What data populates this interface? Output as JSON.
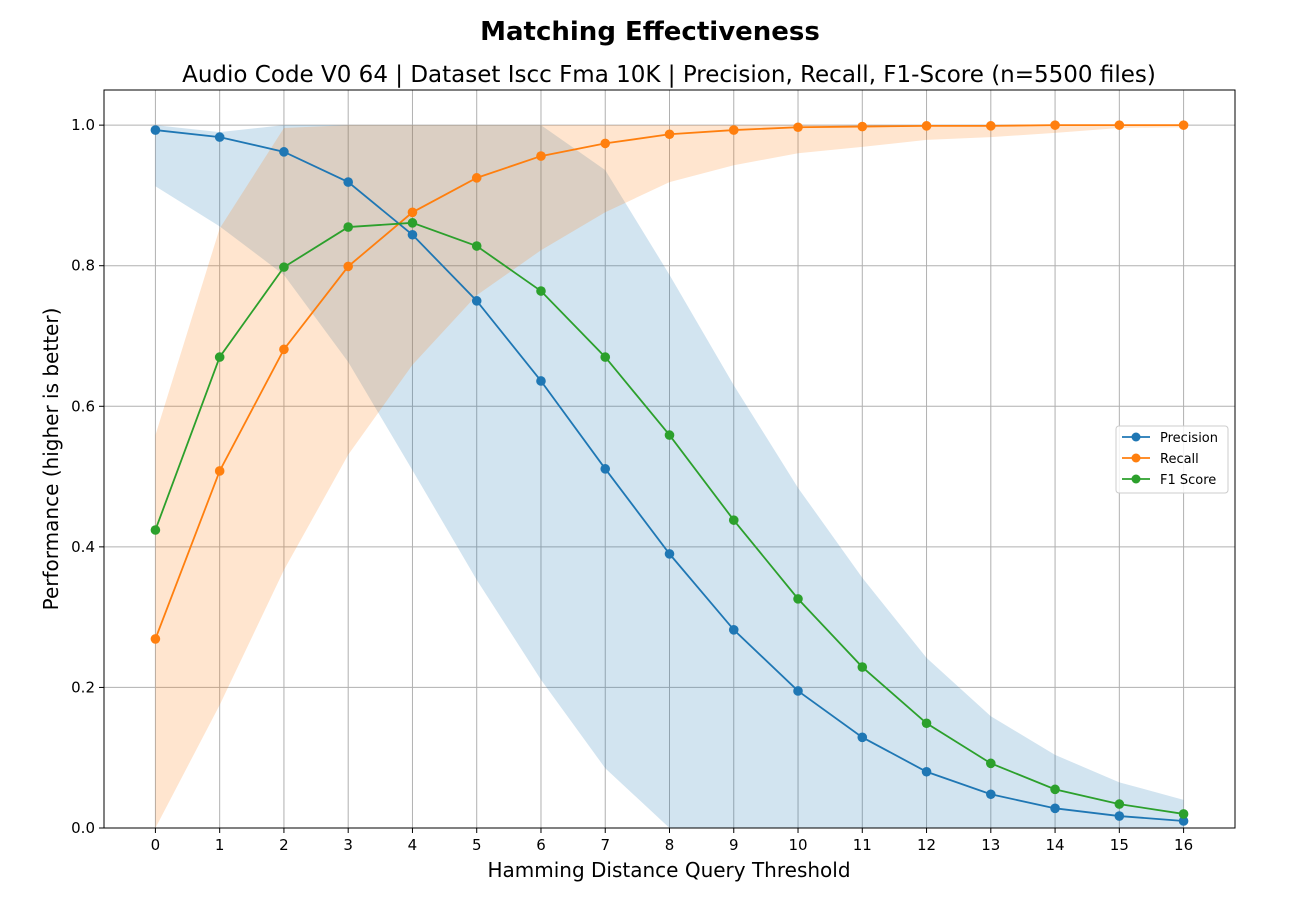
{
  "chart_data": {
    "type": "line",
    "title": "Matching Effectiveness",
    "subtitle": "Audio Code V0 64 | Dataset Iscc Fma 10K | Precision, Recall, F1-Score (n=5500 files)",
    "xlabel": "Hamming Distance Query Threshold",
    "ylabel": "Performance (higher is better)",
    "x": [
      0,
      1,
      2,
      3,
      4,
      5,
      6,
      7,
      8,
      9,
      10,
      11,
      12,
      13,
      14,
      15,
      16
    ],
    "xlim": [
      -0.8,
      16.8
    ],
    "ylim": [
      0,
      1.05
    ],
    "xticks": [
      "0",
      "1",
      "2",
      "3",
      "4",
      "5",
      "6",
      "7",
      "8",
      "9",
      "10",
      "11",
      "12",
      "13",
      "14",
      "15",
      "16"
    ],
    "yticks": [
      "0.0",
      "0.2",
      "0.4",
      "0.6",
      "0.8",
      "1.0"
    ],
    "grid": true,
    "legend_position": "center-right",
    "series": [
      {
        "name": "Precision",
        "color": "#1f77b4",
        "values": [
          0.993,
          0.983,
          0.962,
          0.919,
          0.844,
          0.75,
          0.636,
          0.511,
          0.39,
          0.282,
          0.195,
          0.129,
          0.08,
          0.048,
          0.028,
          0.017,
          0.01
        ],
        "band_upper": [
          1.0,
          0.99,
          1.0,
          1.0,
          1.0,
          1.0,
          1.0,
          0.936,
          0.787,
          0.63,
          0.484,
          0.356,
          0.242,
          0.159,
          0.104,
          0.065,
          0.04
        ],
        "band_lower": [
          0.913,
          0.856,
          0.787,
          0.663,
          0.509,
          0.353,
          0.211,
          0.085,
          0,
          0,
          0,
          0,
          0,
          0,
          0,
          0,
          0
        ]
      },
      {
        "name": "Recall",
        "color": "#ff7f0e",
        "values": [
          0.269,
          0.508,
          0.681,
          0.799,
          0.876,
          0.925,
          0.956,
          0.974,
          0.987,
          0.993,
          0.997,
          0.998,
          0.999,
          0.999,
          1.0,
          1.0,
          1.0
        ],
        "band_upper": [
          0.559,
          0.853,
          0.996,
          1.0,
          1.0,
          1.0,
          1.0,
          1.0,
          1.0,
          1.0,
          1.0,
          1.0,
          1.0,
          1.0,
          1.0,
          1.0,
          1.0
        ],
        "band_lower": [
          0,
          0.175,
          0.367,
          0.531,
          0.659,
          0.758,
          0.822,
          0.876,
          0.919,
          0.943,
          0.96,
          0.969,
          0.979,
          0.983,
          0.989,
          0.996,
          0.997
        ]
      },
      {
        "name": "F1 Score",
        "color": "#2ca02c",
        "values": [
          0.424,
          0.67,
          0.798,
          0.855,
          0.861,
          0.828,
          0.764,
          0.67,
          0.559,
          0.438,
          0.326,
          0.229,
          0.149,
          0.092,
          0.055,
          0.034,
          0.02
        ]
      }
    ]
  }
}
